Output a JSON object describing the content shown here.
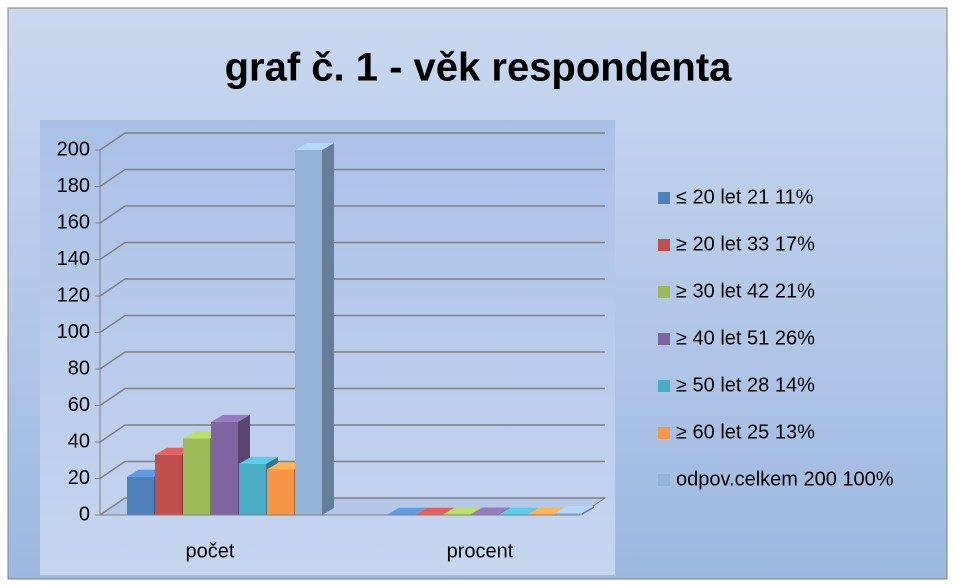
{
  "chart_data": {
    "type": "bar3d",
    "title": "graf č. 1 - věk respondenta",
    "categories": [
      "počet",
      "procent"
    ],
    "series": [
      {
        "name": "≤ 20 let 21 11%",
        "color": "#4f81bd",
        "values": [
          21,
          0.11
        ]
      },
      {
        "name": "≥ 20 let 33 17%",
        "color": "#c0504d",
        "values": [
          33,
          0.17
        ]
      },
      {
        "name": "≥ 30 let 42 21%",
        "color": "#9bbb59",
        "values": [
          42,
          0.21
        ]
      },
      {
        "name": "≥ 40 let 51 26%",
        "color": "#8064a2",
        "values": [
          51,
          0.26
        ]
      },
      {
        "name": "≥ 50 let 28 14%",
        "color": "#4bacc6",
        "values": [
          28,
          0.14
        ]
      },
      {
        "name": "≥ 60 let 25 13%",
        "color": "#f79646",
        "values": [
          25,
          0.13
        ]
      },
      {
        "name": "odpov.celkem 200 100%",
        "color": "#95b3d7",
        "values": [
          200,
          1
        ]
      }
    ],
    "ylim": [
      0,
      200
    ],
    "yticks": [
      0,
      20,
      40,
      60,
      80,
      100,
      120,
      140,
      160,
      180,
      200
    ],
    "grid": true,
    "legend": "right"
  }
}
